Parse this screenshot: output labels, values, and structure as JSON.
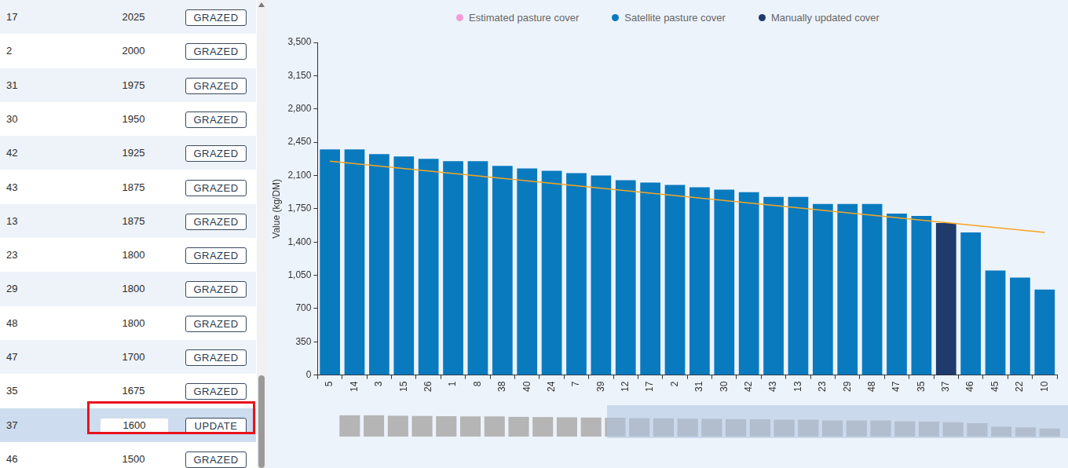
{
  "sidebar": {
    "rows": [
      {
        "paddock": "17",
        "cover": 2025,
        "action": "GRAZED"
      },
      {
        "paddock": "2",
        "cover": 2000,
        "action": "GRAZED"
      },
      {
        "paddock": "31",
        "cover": 1975,
        "action": "GRAZED"
      },
      {
        "paddock": "30",
        "cover": 1950,
        "action": "GRAZED"
      },
      {
        "paddock": "42",
        "cover": 1925,
        "action": "GRAZED"
      },
      {
        "paddock": "43",
        "cover": 1875,
        "action": "GRAZED"
      },
      {
        "paddock": "13",
        "cover": 1875,
        "action": "GRAZED"
      },
      {
        "paddock": "23",
        "cover": 1800,
        "action": "GRAZED"
      },
      {
        "paddock": "29",
        "cover": 1800,
        "action": "GRAZED"
      },
      {
        "paddock": "48",
        "cover": 1800,
        "action": "GRAZED"
      },
      {
        "paddock": "47",
        "cover": 1700,
        "action": "GRAZED"
      },
      {
        "paddock": "35",
        "cover": 1675,
        "action": "GRAZED"
      },
      {
        "paddock": "37",
        "cover": 1600,
        "action": "UPDATE",
        "editing": true
      },
      {
        "paddock": "46",
        "cover": 1500,
        "action": "GRAZED"
      }
    ]
  },
  "chart_data": {
    "type": "bar",
    "y_label": "Value (kg/DM)",
    "legend": "top",
    "legend_items": [
      {
        "label": "Estimated pasture cover",
        "color": "#f59ad8"
      },
      {
        "label": "Satellite pasture cover",
        "color": "#0a7abf"
      },
      {
        "label": "Manually updated cover",
        "color": "#1f3a6b"
      }
    ],
    "categories": [
      "5",
      "14",
      "3",
      "15",
      "26",
      "1",
      "8",
      "38",
      "40",
      "24",
      "7",
      "39",
      "12",
      "17",
      "2",
      "31",
      "30",
      "42",
      "43",
      "13",
      "23",
      "29",
      "48",
      "47",
      "35",
      "37",
      "46",
      "45",
      "22",
      "10"
    ],
    "values": [
      2375,
      2375,
      2325,
      2300,
      2275,
      2250,
      2250,
      2200,
      2175,
      2150,
      2125,
      2100,
      2050,
      2025,
      2000,
      1975,
      1950,
      1925,
      1875,
      1875,
      1800,
      1800,
      1800,
      1700,
      1675,
      1600,
      1500,
      1100,
      1025,
      900
    ],
    "colors": [
      "#0a7abf",
      "#0a7abf",
      "#0a7abf",
      "#0a7abf",
      "#0a7abf",
      "#0a7abf",
      "#0a7abf",
      "#0a7abf",
      "#0a7abf",
      "#0a7abf",
      "#0a7abf",
      "#0a7abf",
      "#0a7abf",
      "#0a7abf",
      "#0a7abf",
      "#0a7abf",
      "#0a7abf",
      "#0a7abf",
      "#0a7abf",
      "#0a7abf",
      "#0a7abf",
      "#0a7abf",
      "#0a7abf",
      "#0a7abf",
      "#0a7abf",
      "#1f3a6b",
      "#0a7abf",
      "#0a7abf",
      "#0a7abf",
      "#0a7abf"
    ],
    "target_line": {
      "start": 2250,
      "end": 1500,
      "color": "#f5a623"
    },
    "ylim": [
      0,
      3500
    ],
    "yticks": [
      0,
      350,
      700,
      {
        "value": 1050,
        "label": "1,050"
      },
      {
        "value": 1400,
        "label": "1,400"
      },
      {
        "value": 1750,
        "label": "1,750"
      },
      {
        "value": 2100,
        "label": "2,100"
      },
      {
        "value": 2450,
        "label": "2,450"
      },
      {
        "value": 2800,
        "label": "2,800"
      },
      {
        "value": 3150,
        "label": "3,150"
      },
      {
        "value": 3500,
        "label": "3,500"
      }
    ],
    "grid": false
  }
}
